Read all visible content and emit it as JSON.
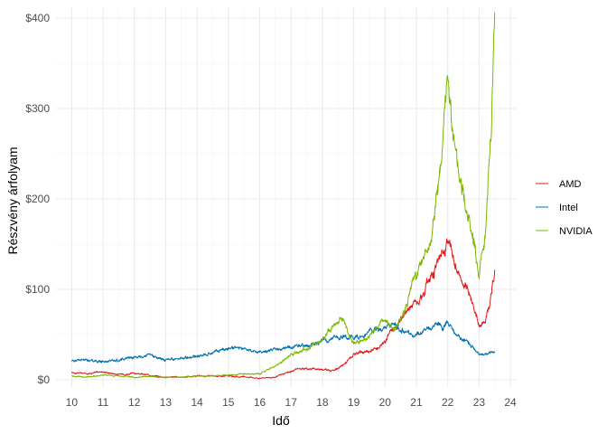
{
  "chart_data": {
    "type": "line",
    "title": "",
    "xlabel": "Idő",
    "ylabel": "Részvény árfolyam",
    "xlim": [
      9.5,
      24.2
    ],
    "ylim": [
      -8,
      412
    ],
    "x_ticks": [
      10,
      11,
      12,
      13,
      14,
      15,
      16,
      17,
      18,
      19,
      20,
      21,
      22,
      23,
      24
    ],
    "x_tick_labels": [
      "10",
      "11",
      "12",
      "13",
      "14",
      "15",
      "16",
      "17",
      "18",
      "19",
      "20",
      "21",
      "22",
      "23",
      "24"
    ],
    "y_ticks": [
      0,
      100,
      200,
      300,
      400
    ],
    "y_tick_labels": [
      "$0",
      "$100",
      "$200",
      "$300",
      "$400"
    ],
    "grid": true,
    "legend_position": "right",
    "series": [
      {
        "name": "AMD",
        "color": "#e31a1c",
        "x": [
          10.0,
          10.5,
          11.0,
          11.5,
          12.0,
          12.5,
          13.0,
          13.5,
          14.0,
          14.5,
          15.0,
          15.5,
          16.0,
          16.5,
          17.0,
          17.3,
          17.6,
          18.0,
          18.3,
          18.6,
          18.8,
          19.0,
          19.3,
          19.6,
          19.8,
          20.0,
          20.3,
          20.6,
          20.9,
          21.2,
          21.5,
          21.8,
          22.0,
          22.2,
          22.5,
          22.8,
          23.0,
          23.2,
          23.4,
          23.5
        ],
        "y": [
          8,
          7,
          9,
          6,
          7,
          5,
          3,
          3,
          4,
          4,
          4,
          3,
          2,
          3,
          9,
          13,
          12,
          12,
          10,
          14,
          21,
          27,
          30,
          33,
          36,
          45,
          57,
          72,
          85,
          95,
          120,
          135,
          158,
          130,
          105,
          85,
          60,
          65,
          95,
          120
        ]
      },
      {
        "name": "Intel",
        "color": "#0072b2",
        "x": [
          10.0,
          10.5,
          11.0,
          11.5,
          12.0,
          12.5,
          13.0,
          13.5,
          14.0,
          14.5,
          15.0,
          15.5,
          16.0,
          16.5,
          17.0,
          17.3,
          17.6,
          18.0,
          18.3,
          18.6,
          18.8,
          19.0,
          19.3,
          19.6,
          19.8,
          20.0,
          20.3,
          20.6,
          20.9,
          21.2,
          21.5,
          21.8,
          22.0,
          22.2,
          22.5,
          22.8,
          23.0,
          23.2,
          23.4,
          23.5
        ],
        "y": [
          21,
          22,
          20,
          22,
          26,
          27,
          22,
          23,
          26,
          30,
          36,
          33,
          31,
          33,
          36,
          37,
          38,
          43,
          47,
          48,
          45,
          47,
          50,
          56,
          55,
          58,
          61,
          55,
          49,
          53,
          56,
          60,
          62,
          52,
          44,
          37,
          29,
          29,
          30,
          30
        ]
      },
      {
        "name": "NVIDIA",
        "color": "#7ab800",
        "x": [
          10.0,
          10.5,
          11.0,
          11.5,
          12.0,
          12.5,
          13.0,
          13.5,
          14.0,
          14.5,
          15.0,
          15.5,
          16.0,
          16.5,
          17.0,
          17.3,
          17.6,
          18.0,
          18.3,
          18.6,
          18.8,
          19.0,
          19.3,
          19.6,
          19.8,
          20.0,
          20.3,
          20.6,
          20.9,
          21.2,
          21.5,
          21.8,
          22.0,
          22.2,
          22.5,
          22.8,
          23.0,
          23.2,
          23.4,
          23.5
        ],
        "y": [
          4,
          3,
          5,
          4,
          3,
          3,
          3,
          3,
          4,
          4,
          5,
          6,
          7,
          15,
          27,
          32,
          36,
          45,
          58,
          68,
          55,
          40,
          43,
          52,
          61,
          65,
          55,
          70,
          110,
          130,
          160,
          240,
          330,
          265,
          205,
          160,
          115,
          160,
          280,
          400
        ]
      }
    ]
  }
}
